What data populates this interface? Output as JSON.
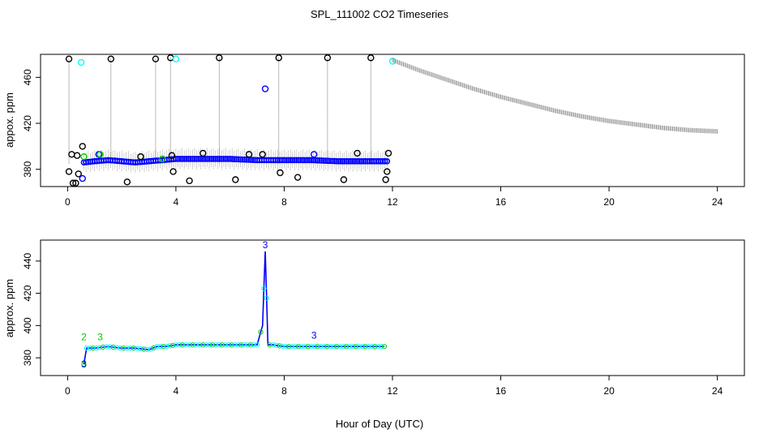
{
  "title": "SPL_111002  CO2 Timeseries",
  "xlabel": "Hour of Day (UTC)",
  "colors": {
    "black": "#000000",
    "blue": "#0000ff",
    "green": "#00cc00",
    "cyan": "#00ffff",
    "axis": "#000000",
    "errorbar": "#8c8c8c"
  },
  "chart_data": [
    {
      "type": "scatter",
      "panel": "top",
      "ylabel": "appox. ppm",
      "xlim": [
        -1,
        25
      ],
      "ylim": [
        365,
        480
      ],
      "x_ticks": [
        0,
        4,
        8,
        12,
        16,
        20,
        24
      ],
      "x_tick_labels": [
        "0",
        "4",
        "8",
        "12",
        "16",
        "20",
        "24"
      ],
      "y_ticks": [
        380,
        420,
        460
      ],
      "y_tick_labels": [
        "380",
        "420",
        "460"
      ],
      "grid": false,
      "legend": "none",
      "series": [
        {
          "style": "blue-circle-trace",
          "color": "#0000ff",
          "x": [
            0.6,
            1.0,
            1.5,
            2.0,
            2.5,
            3.0,
            3.5,
            4.0,
            5.0,
            6.0,
            7.0,
            7.6,
            8.0,
            9.0,
            10.0,
            11.0,
            11.8
          ],
          "y": [
            386,
            387,
            388,
            387,
            386,
            387,
            388,
            389,
            389,
            389,
            388,
            388,
            388,
            388,
            387,
            387,
            387
          ]
        },
        {
          "style": "black-open-circles",
          "color": "#000000",
          "x": [
            0.05,
            0.05,
            0.15,
            0.2,
            0.3,
            0.35,
            0.4,
            0.55,
            1.6,
            2.2,
            2.7,
            3.25,
            3.8,
            3.85,
            3.9,
            4.5,
            5.0,
            5.6,
            6.2,
            6.7,
            7.2,
            7.8,
            7.85,
            8.5,
            9.6,
            10.2,
            10.7,
            11.2,
            11.75,
            11.8,
            11.85
          ],
          "y": [
            476,
            378,
            393,
            368,
            368,
            392,
            376,
            400,
            476,
            369,
            391,
            476,
            477,
            392,
            378,
            370,
            394,
            477,
            371,
            393,
            393,
            477,
            377,
            373,
            477,
            371,
            394,
            477,
            371,
            378,
            394
          ]
        },
        {
          "style": "blue-open-circles",
          "color": "#0000ff",
          "x": [
            0.55,
            1.15,
            7.3,
            9.1
          ],
          "y": [
            372,
            393,
            450,
            393
          ]
        },
        {
          "style": "green-open-circles",
          "color": "#00cc00",
          "x": [
            0.6,
            1.2,
            3.5
          ],
          "y": [
            391,
            393,
            389
          ]
        },
        {
          "style": "cyan-open-circles",
          "color": "#00ffff",
          "x": [
            0.5,
            4.0,
            12.0
          ],
          "y": [
            473,
            476,
            474
          ]
        },
        {
          "style": "grey-trend",
          "color": "#8c8c8c",
          "x": [
            12,
            13,
            14,
            15,
            16,
            17,
            18,
            19,
            20,
            21,
            22,
            23,
            24
          ],
          "y": [
            475,
            466,
            458,
            450,
            443,
            437,
            431,
            426,
            422,
            419,
            416,
            414,
            413
          ]
        }
      ]
    },
    {
      "type": "line",
      "panel": "bottom",
      "ylabel": "approx. ppm",
      "xlim": [
        -1,
        25
      ],
      "ylim": [
        369,
        453
      ],
      "x_ticks": [
        0,
        4,
        8,
        12,
        16,
        20,
        24
      ],
      "x_tick_labels": [
        "0",
        "4",
        "8",
        "12",
        "16",
        "20",
        "24"
      ],
      "y_ticks": [
        380,
        400,
        420,
        440
      ],
      "y_tick_labels": [
        "380",
        "400",
        "420",
        "440"
      ],
      "grid": false,
      "legend": "none",
      "series": [
        {
          "style": "blue-line-with-circles",
          "color": "#0000ff",
          "x": [
            0.6,
            0.7,
            1.0,
            1.5,
            2.0,
            2.5,
            3.0,
            3.3,
            3.6,
            4.0,
            4.5,
            5.0,
            6.0,
            7.0,
            7.2,
            7.3,
            7.4,
            7.6,
            8.0,
            9.0,
            10.0,
            11.0,
            11.7
          ],
          "y": [
            376,
            386,
            386,
            387,
            386,
            386,
            385,
            387,
            387,
            388,
            388,
            388,
            388,
            388,
            400,
            446,
            388,
            388,
            387,
            387,
            387,
            387,
            387
          ]
        }
      ],
      "annotations": [
        {
          "text": "2",
          "x": 0.6,
          "y": 391,
          "color": "#00cc00"
        },
        {
          "text": "3",
          "x": 1.2,
          "y": 391,
          "color": "#00cc00"
        },
        {
          "text": "3",
          "x": 0.6,
          "y": 374,
          "color": "#0000ff"
        },
        {
          "text": "3",
          "x": 7.3,
          "y": 448,
          "color": "#0000ff"
        },
        {
          "text": "3",
          "x": 9.1,
          "y": 392,
          "color": "#0000ff"
        }
      ]
    }
  ]
}
